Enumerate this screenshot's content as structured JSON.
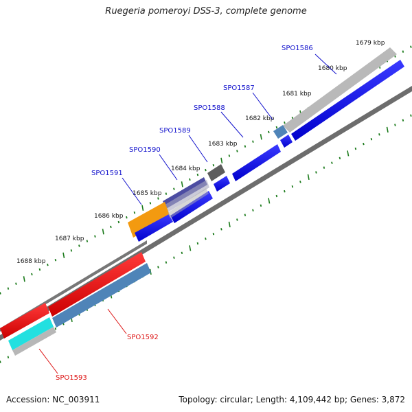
{
  "title": "Ruegeria pomeroyi DSS-3, complete genome",
  "accession": "Accession: NC_003911",
  "topology": "Topology: circular; Length: 4,109,442 bp; Genes: 3,872",
  "kbp_ticks": [
    "1679 kbp",
    "1680 kbp",
    "1681 kbp",
    "1682 kbp",
    "1683 kbp",
    "1684 kbp",
    "1685 kbp",
    "1686 kbp",
    "1687 kbp",
    "1688 kbp"
  ],
  "genes_forward": [
    "SPO1586",
    "SPO1587",
    "SPO1588",
    "SPO1589",
    "SPO1590",
    "SPO1591"
  ],
  "genes_reverse": [
    "SPO1592",
    "SPO1593"
  ],
  "colors": {
    "forward_gene": "#0000ee",
    "reverse_gene": "#ee0000",
    "steel_blue": "#4a7fb5",
    "orange": "#f39a10",
    "purple": "#4a4aa0",
    "gray_feature": "#b8b8b8",
    "dark_gray_feature": "#5a5a5a",
    "cyan": "#22e0e0",
    "backbone": "#666666",
    "tick_green": "#1a7a1a"
  }
}
